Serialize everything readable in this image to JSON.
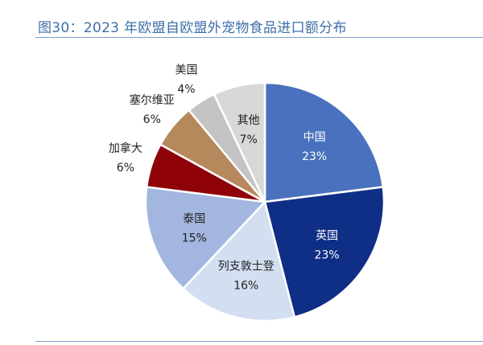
{
  "title": "图30：2023 年欧盟自欧盟外宠物食品进口额分布",
  "chart_data": {
    "type": "pie",
    "title": "图30：2023 年欧盟自欧盟外宠物食品进口额分布",
    "start": "12 o'clock, clockwise",
    "slices": [
      {
        "label": "中国",
        "value": 23,
        "value_label": "23%",
        "color": "#4a71bd",
        "label_position": "inside"
      },
      {
        "label": "英国",
        "value": 23,
        "value_label": "23%",
        "color": "#0f2e86",
        "label_position": "inside"
      },
      {
        "label": "列支敦士登",
        "value": 16,
        "value_label": "16%",
        "color": "#d3def1",
        "label_position": "inside"
      },
      {
        "label": "泰国",
        "value": 15,
        "value_label": "15%",
        "color": "#a2b6df",
        "label_position": "inside"
      },
      {
        "label": "加拿大",
        "value": 6,
        "value_label": "6%",
        "color": "#8f0208",
        "label_position": "outside"
      },
      {
        "label": "塞尔维亚",
        "value": 6,
        "value_label": "6%",
        "color": "#b5895c",
        "label_position": "outside"
      },
      {
        "label": "美国",
        "value": 4,
        "value_label": "4%",
        "color": "#c4c4c4",
        "label_position": "outside"
      },
      {
        "label": "其他",
        "value": 7,
        "value_label": "7%",
        "color": "#d8d8d8",
        "label_position": "inside"
      }
    ]
  }
}
